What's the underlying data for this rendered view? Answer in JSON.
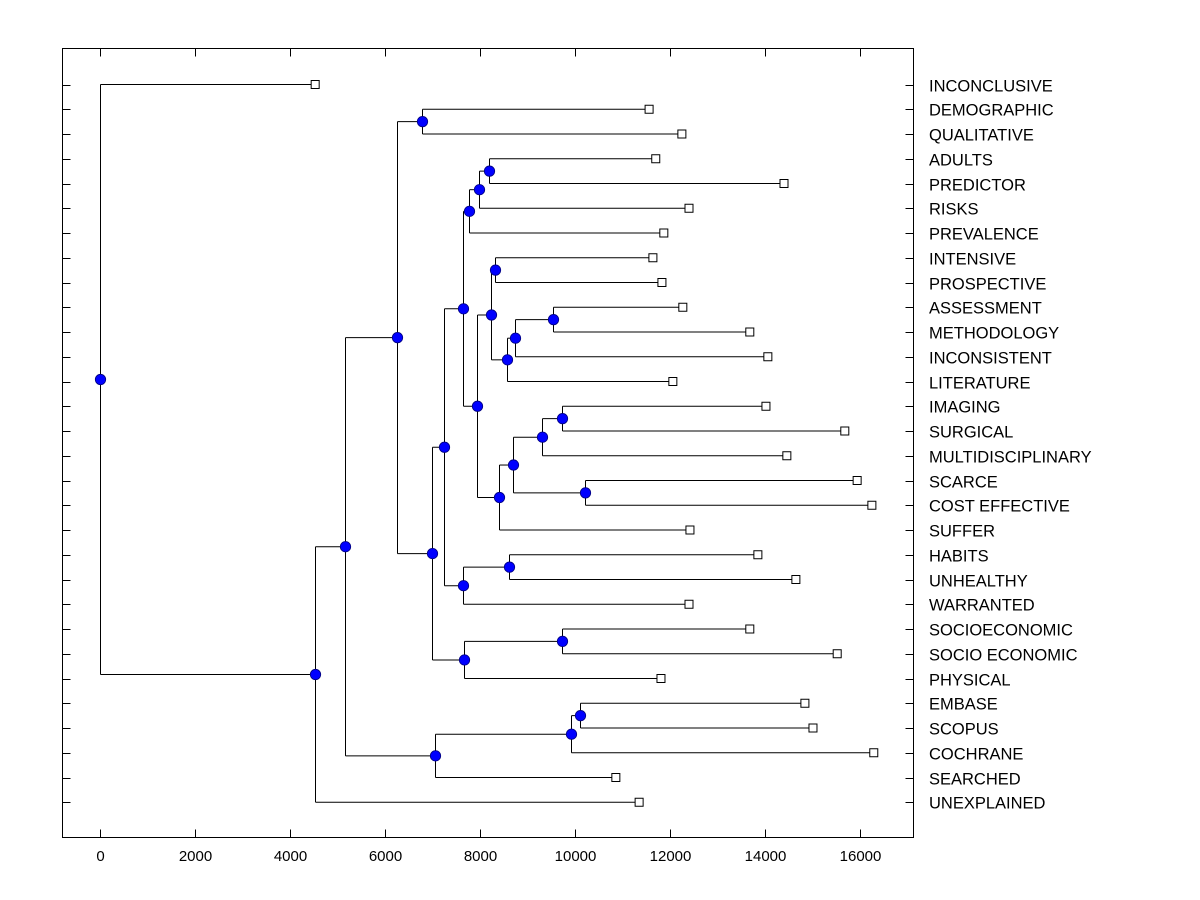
{
  "chart_data": {
    "type": "dendrogram",
    "title": "",
    "xlabel": "",
    "ylabel": "",
    "xlim": [
      -800,
      17000
    ],
    "xticks": [
      0,
      2000,
      4000,
      6000,
      8000,
      10000,
      12000,
      14000,
      16000
    ],
    "xtick_labels": [
      "0",
      "2000",
      "4000",
      "6000",
      "8000",
      "10000",
      "12000",
      "14000",
      "16000"
    ],
    "grid": false,
    "legend": "none",
    "colors": {
      "node_fill": "#0000ff",
      "node_stroke": "#000080",
      "leaf_fill": "#ffffff",
      "line": "#000000"
    },
    "leaves": [
      {
        "label": "INCONCLUSIVE",
        "x": 4530
      },
      {
        "label": "DEMOGRAPHIC",
        "x": 11560
      },
      {
        "label": "QUALITATIVE",
        "x": 12250
      },
      {
        "label": "ADULTS",
        "x": 11700
      },
      {
        "label": "PREDICTOR",
        "x": 14400
      },
      {
        "label": "RISKS",
        "x": 12400
      },
      {
        "label": "PREVALENCE",
        "x": 11870
      },
      {
        "label": "INTENSIVE",
        "x": 11640
      },
      {
        "label": "PROSPECTIVE",
        "x": 11830
      },
      {
        "label": "ASSESSMENT",
        "x": 12270
      },
      {
        "label": "METHODOLOGY",
        "x": 13680
      },
      {
        "label": "INCONSISTENT",
        "x": 14060
      },
      {
        "label": "LITERATURE",
        "x": 12060
      },
      {
        "label": "IMAGING",
        "x": 14020
      },
      {
        "label": "SURGICAL",
        "x": 15680
      },
      {
        "label": "MULTIDISCIPLINARY",
        "x": 14460
      },
      {
        "label": "SCARCE",
        "x": 15940
      },
      {
        "label": "COST EFFECTIVE",
        "x": 16250
      },
      {
        "label": "SUFFER",
        "x": 12420
      },
      {
        "label": "HABITS",
        "x": 13850
      },
      {
        "label": "UNHEALTHY",
        "x": 14650
      },
      {
        "label": "WARRANTED",
        "x": 12400
      },
      {
        "label": "SOCIOECONOMIC",
        "x": 13680
      },
      {
        "label": "SOCIO ECONOMIC",
        "x": 15520
      },
      {
        "label": "PHYSICAL",
        "x": 11810
      },
      {
        "label": "EMBASE",
        "x": 14840
      },
      {
        "label": "SCOPUS",
        "x": 15010
      },
      {
        "label": "COCHRANE",
        "x": 16290
      },
      {
        "label": "SEARCHED",
        "x": 10860
      },
      {
        "label": "UNEXPLAINED",
        "x": 11350
      }
    ],
    "tree": {
      "x": 0,
      "children": [
        {
          "leaf": 0
        },
        {
          "x": 4530,
          "children": [
            {
              "x": 5160,
              "children": [
                {
                  "x": 6250,
                  "children": [
                    {
                      "x": 6780,
                      "children": [
                        {
                          "leaf": 1
                        },
                        {
                          "leaf": 2
                        }
                      ]
                    },
                    {
                      "x": 6990,
                      "children": [
                        {
                          "x": 7240,
                          "children": [
                            {
                              "x": 7640,
                              "children": [
                                {
                                  "x": 7770,
                                  "children": [
                                    {
                                      "x": 7980,
                                      "children": [
                                        {
                                          "x": 8190,
                                          "children": [
                                            {
                                              "leaf": 3
                                            },
                                            {
                                              "leaf": 4
                                            }
                                          ]
                                        },
                                        {
                                          "leaf": 5
                                        }
                                      ]
                                    },
                                    {
                                      "leaf": 6
                                    }
                                  ]
                                },
                                {
                                  "x": 7940,
                                  "children": [
                                    {
                                      "x": 8230,
                                      "children": [
                                        {
                                          "x": 8320,
                                          "children": [
                                            {
                                              "leaf": 7
                                            },
                                            {
                                              "leaf": 8
                                            }
                                          ]
                                        },
                                        {
                                          "x": 8570,
                                          "children": [
                                            {
                                              "x": 8740,
                                              "children": [
                                                {
                                                  "x": 9540,
                                                  "children": [
                                                    {
                                                      "leaf": 9
                                                    },
                                                    {
                                                      "leaf": 10
                                                    }
                                                  ]
                                                },
                                                {
                                                  "leaf": 11
                                                }
                                              ]
                                            },
                                            {
                                              "leaf": 12
                                            }
                                          ]
                                        }
                                      ]
                                    },
                                    {
                                      "x": 8400,
                                      "children": [
                                        {
                                          "x": 8690,
                                          "children": [
                                            {
                                              "x": 9310,
                                              "children": [
                                                {
                                                  "x": 9730,
                                                  "children": [
                                                    {
                                                      "leaf": 13
                                                    },
                                                    {
                                                      "leaf": 14
                                                    }
                                                  ]
                                                },
                                                {
                                                  "leaf": 15
                                                }
                                              ]
                                            },
                                            {
                                              "x": 10210,
                                              "children": [
                                                {
                                                  "leaf": 16
                                                },
                                                {
                                                  "leaf": 17
                                                }
                                              ]
                                            }
                                          ]
                                        },
                                        {
                                          "leaf": 18
                                        }
                                      ]
                                    }
                                  ]
                                }
                              ]
                            },
                            {
                              "x": 7640,
                              "children": [
                                {
                                  "x": 8610,
                                  "children": [
                                    {
                                      "leaf": 19
                                    },
                                    {
                                      "leaf": 20
                                    }
                                  ]
                                },
                                {
                                  "leaf": 21
                                }
                              ]
                            }
                          ]
                        },
                        {
                          "x": 7660,
                          "children": [
                            {
                              "x": 9730,
                              "children": [
                                {
                                  "leaf": 22
                                },
                                {
                                  "leaf": 23
                                }
                              ]
                            },
                            {
                              "leaf": 24
                            }
                          ]
                        }
                      ]
                    }
                  ]
                },
                {
                  "x": 7050,
                  "children": [
                    {
                      "x": 9920,
                      "children": [
                        {
                          "x": 10110,
                          "children": [
                            {
                              "leaf": 25
                            },
                            {
                              "leaf": 26
                            }
                          ]
                        },
                        {
                          "leaf": 27
                        }
                      ]
                    },
                    {
                      "leaf": 28
                    }
                  ]
                }
              ]
            },
            {
              "leaf": 29
            }
          ]
        }
      ]
    }
  }
}
